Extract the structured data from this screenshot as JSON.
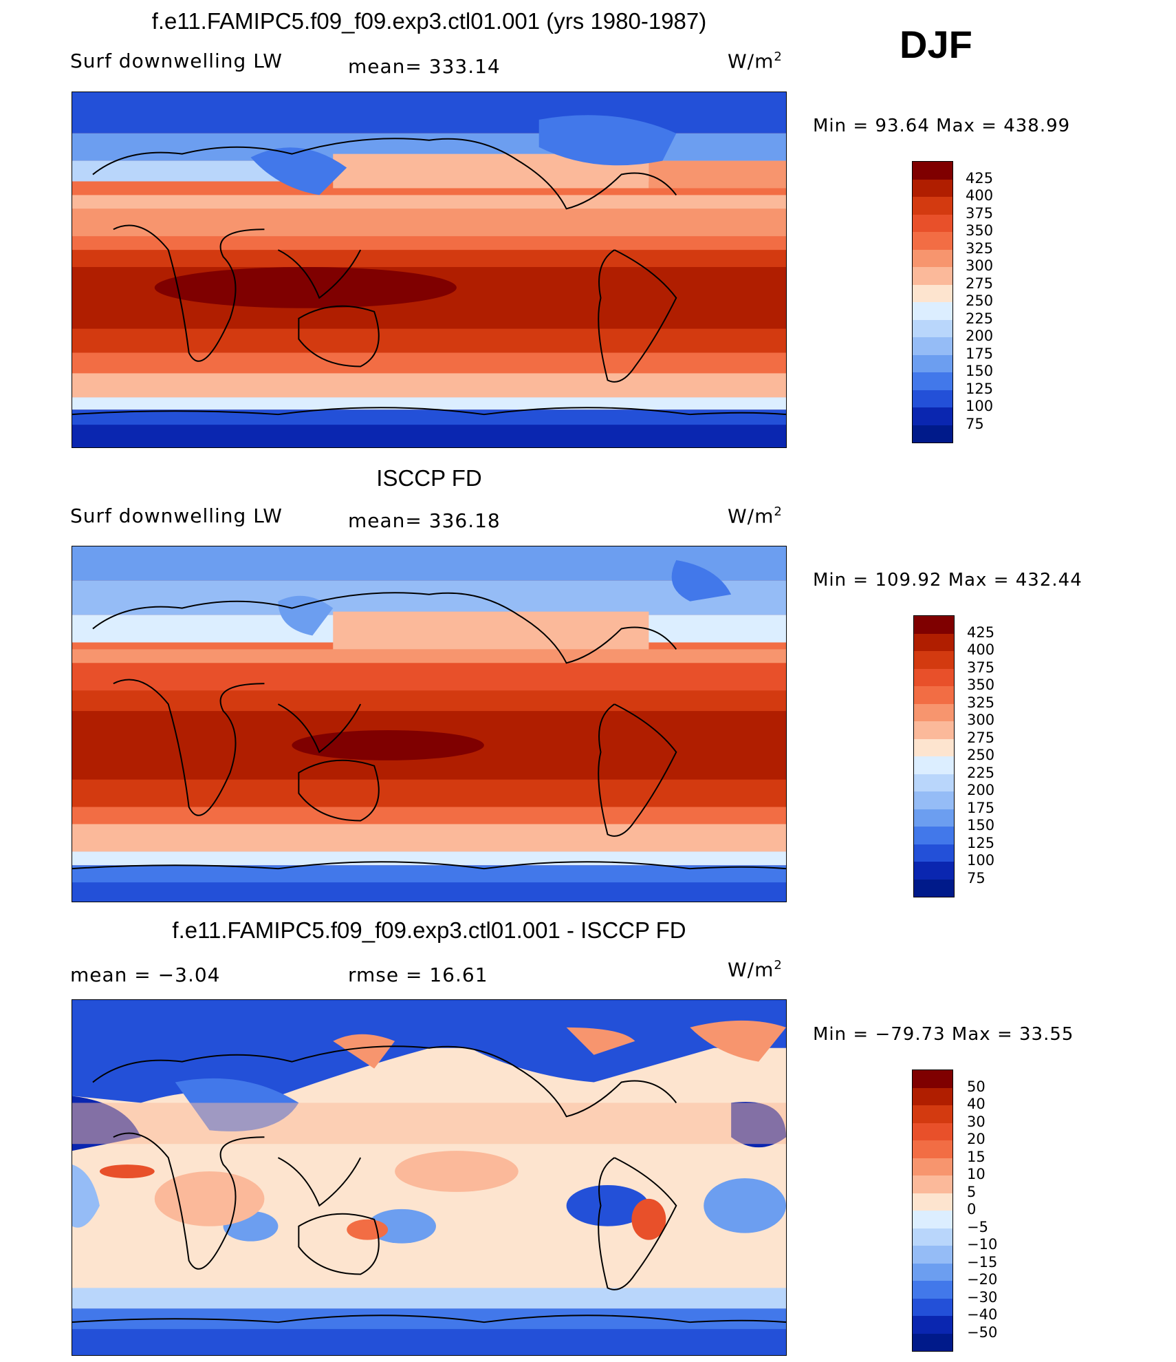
{
  "season": "DJF",
  "units": "W/m",
  "units_sup": "2",
  "panels": [
    {
      "title": "f.e11.FAMIPC5.f09_f09.exp3.ctl01.001 (yrs 1980-1987)",
      "left_label": "Surf downwelling LW",
      "center_label": "mean= 333.14",
      "minmax": "Min =   93.64 Max = 438.99",
      "ticks": [
        "425",
        "400",
        "375",
        "350",
        "325",
        "300",
        "275",
        "250",
        "225",
        "200",
        "175",
        "150",
        "125",
        "100",
        "75"
      ],
      "chart_data": {
        "type": "heatmap",
        "field": "Surf downwelling LW",
        "mean": 333.14,
        "min": 93.64,
        "max": 438.99,
        "levels": [
          75,
          100,
          125,
          150,
          175,
          200,
          225,
          250,
          275,
          300,
          325,
          350,
          375,
          400,
          425
        ]
      }
    },
    {
      "title": "ISCCP FD",
      "left_label": "Surf downwelling LW",
      "center_label": "mean= 336.18",
      "minmax": "Min = 109.92 Max = 432.44",
      "ticks": [
        "425",
        "400",
        "375",
        "350",
        "325",
        "300",
        "275",
        "250",
        "225",
        "200",
        "175",
        "150",
        "125",
        "100",
        "75"
      ],
      "chart_data": {
        "type": "heatmap",
        "field": "Surf downwelling LW",
        "mean": 336.18,
        "min": 109.92,
        "max": 432.44,
        "levels": [
          75,
          100,
          125,
          150,
          175,
          200,
          225,
          250,
          275,
          300,
          325,
          350,
          375,
          400,
          425
        ]
      }
    },
    {
      "title": "f.e11.FAMIPC5.f09_f09.exp3.ctl01.001 - ISCCP FD",
      "left_label": "mean =   −3.04",
      "center_label": "rmse =   16.61",
      "minmax": "Min = −79.73 Max =   33.55",
      "ticks": [
        "50",
        "40",
        "30",
        "20",
        "15",
        "10",
        "5",
        "0",
        "−5",
        "−10",
        "−15",
        "−20",
        "−30",
        "−40",
        "−50"
      ],
      "chart_data": {
        "type": "heatmap",
        "mean": -3.04,
        "rmse": 16.61,
        "min": -79.73,
        "max": 33.55,
        "levels": [
          -50,
          -40,
          -30,
          -20,
          -15,
          -10,
          -5,
          0,
          5,
          10,
          15,
          20,
          30,
          40,
          50
        ]
      }
    }
  ],
  "colorbar_colors": [
    "#7f0000",
    "#b01e00",
    "#d33a10",
    "#e8502a",
    "#f26d44",
    "#f7956e",
    "#fbb99a",
    "#fde4cf",
    "#dceeff",
    "#b9d6fb",
    "#95bcf6",
    "#6c9ef0",
    "#4278ea",
    "#2350d8",
    "#0a26b0",
    "#001a8a"
  ]
}
